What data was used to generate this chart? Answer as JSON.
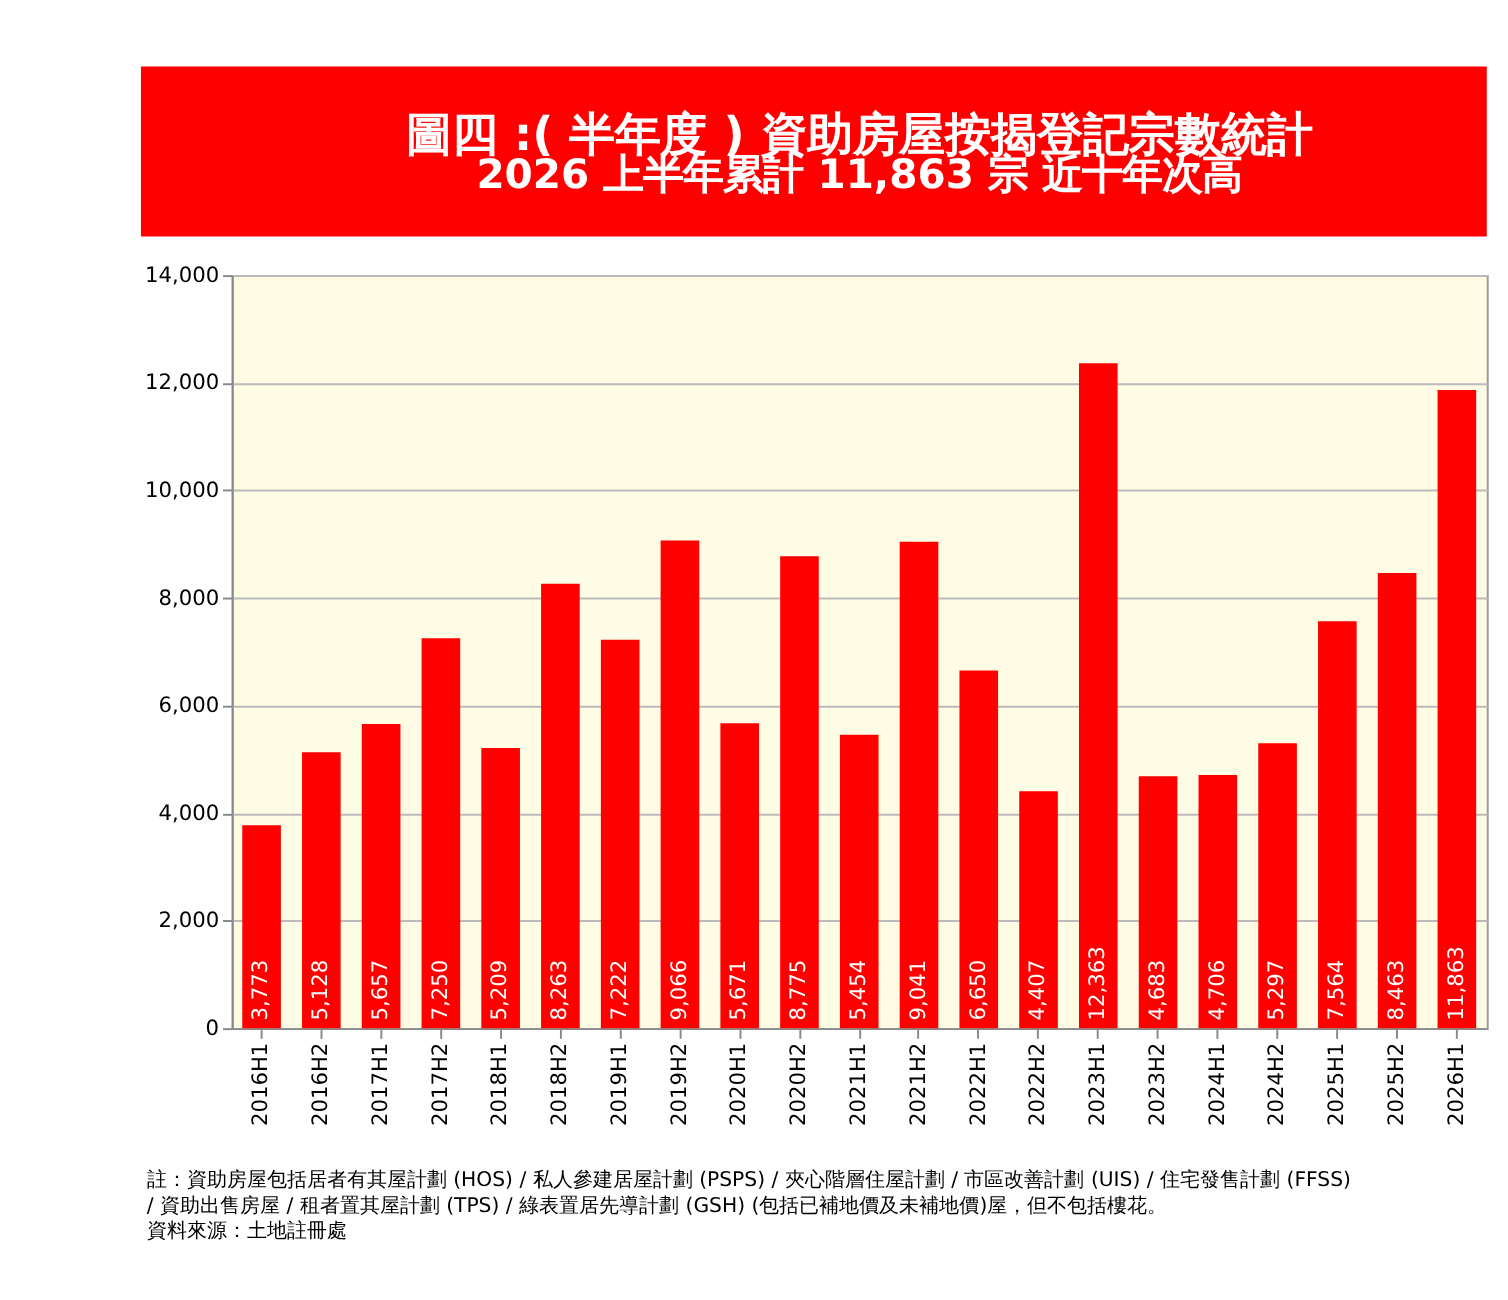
{
  "chart_data": {
    "type": "bar",
    "title": "圖四 :( 半年度 ) 資助房屋按揭登記宗數統計",
    "subtitle": "2026 上半年累計 11,863 宗 近十年次高",
    "categories": [
      "2016H1",
      "2016H2",
      "2017H1",
      "2017H2",
      "2018H1",
      "2018H2",
      "2019H1",
      "2019H2",
      "2020H1",
      "2020H2",
      "2021H1",
      "2021H2",
      "2022H1",
      "2022H2",
      "2023H1",
      "2023H2",
      "2024H1",
      "2024H2",
      "2025H1",
      "2025H2",
      "2026H1"
    ],
    "values": [
      3773,
      5128,
      5657,
      7250,
      5209,
      8263,
      7222,
      9066,
      5671,
      8775,
      5454,
      9041,
      6650,
      4407,
      12363,
      4683,
      4706,
      5297,
      7564,
      8463,
      11863
    ],
    "value_labels": [
      "3,773",
      "5,128",
      "5,657",
      "7,250",
      "5,209",
      "8,263",
      "7,222",
      "9,066",
      "5,671",
      "8,775",
      "5,454",
      "9,041",
      "6,650",
      "4,407",
      "12,363",
      "4,683",
      "4,706",
      "5,297",
      "7,564",
      "8,463",
      "11,863"
    ],
    "color": "#ff0000",
    "ylim": [
      0,
      14000
    ],
    "yticks": [
      {
        "value": 0,
        "label": "0"
      },
      {
        "value": 2000,
        "label": "2,000"
      },
      {
        "value": 4000,
        "label": "4,000"
      },
      {
        "value": 6000,
        "label": "6,000"
      },
      {
        "value": 8000,
        "label": "8,000"
      },
      {
        "value": 10000,
        "label": "10,000"
      },
      {
        "value": 12000,
        "label": "12,000"
      },
      {
        "value": 14000,
        "label": "14,000"
      }
    ],
    "grid": "y",
    "annotations": [
      "註：資助房屋包括居者有其屋計劃 (HOS) / 私人參建居屋計劃 (PSPS) / 夾心階層住屋計劃 / 市區改善計劃 (UIS) / 住宅發售計劃 (FFSS)",
      "/ 資助出售房屋 / 租者置其屋計劃 (TPS) / 綠表置居先導計劃 (GSH) (包括已補地價及未補地價)屋，但不包括樓花。",
      "資料來源：土地註冊處"
    ]
  }
}
